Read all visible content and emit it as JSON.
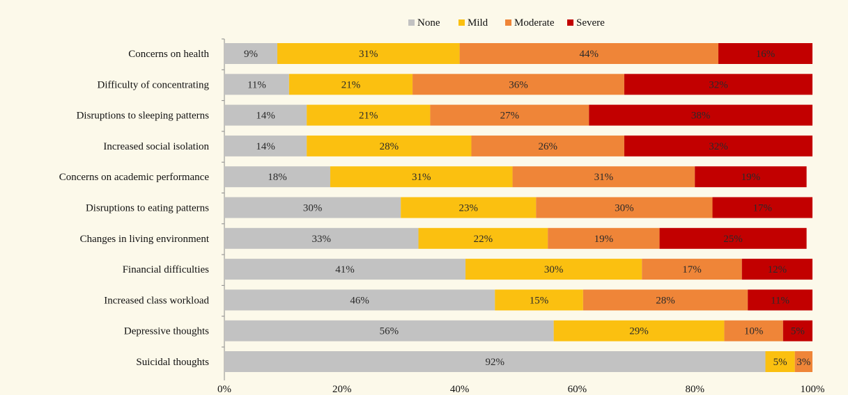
{
  "chart_data": {
    "type": "bar",
    "orientation": "horizontal",
    "stacked": true,
    "percent": true,
    "categories": [
      "Concerns on health",
      "Difficulty of concentrating",
      "Disruptions to sleeping patterns",
      "Increased social isolation",
      "Concerns on academic performance",
      "Disruptions to eating patterns",
      "Changes in living environment",
      "Financial difficulties",
      "Increased class workload",
      "Depressive thoughts",
      "Suicidal thoughts"
    ],
    "series": [
      {
        "name": "None",
        "color": "#c2c2c2",
        "values": [
          9,
          11,
          14,
          14,
          18,
          30,
          33,
          41,
          46,
          56,
          92
        ]
      },
      {
        "name": "Mild",
        "color": "#fbc010",
        "values": [
          31,
          21,
          21,
          28,
          31,
          23,
          22,
          30,
          15,
          29,
          5
        ]
      },
      {
        "name": "Moderate",
        "color": "#ef8538",
        "values": [
          44,
          36,
          27,
          26,
          31,
          30,
          19,
          17,
          28,
          10,
          3
        ]
      },
      {
        "name": "Severe",
        "color": "#c20000",
        "values": [
          16,
          32,
          38,
          32,
          19,
          17,
          25,
          12,
          11,
          5,
          0
        ]
      }
    ],
    "data_labels": [
      [
        "9%",
        "31%",
        "44%",
        "16%"
      ],
      [
        "11%",
        "21%",
        "36%",
        "32%"
      ],
      [
        "14%",
        "21%",
        "27%",
        "38%"
      ],
      [
        "14%",
        "28%",
        "26%",
        "32%"
      ],
      [
        "18%",
        "31%",
        "31%",
        "19%"
      ],
      [
        "30%",
        "23%",
        "30%",
        "17%"
      ],
      [
        "33%",
        "22%",
        "19%",
        "25%"
      ],
      [
        "41%",
        "30%",
        "17%",
        "12%"
      ],
      [
        "46%",
        "15%",
        "28%",
        "11%"
      ],
      [
        "56%",
        "29%",
        "10%",
        "5%"
      ],
      [
        "92%",
        "5%",
        "3%",
        ""
      ]
    ],
    "xlim": [
      0,
      100
    ],
    "x_ticks": [
      "0%",
      "20%",
      "40%",
      "60%",
      "80%",
      "100%"
    ],
    "legend_position": "top-center",
    "grid": false
  }
}
